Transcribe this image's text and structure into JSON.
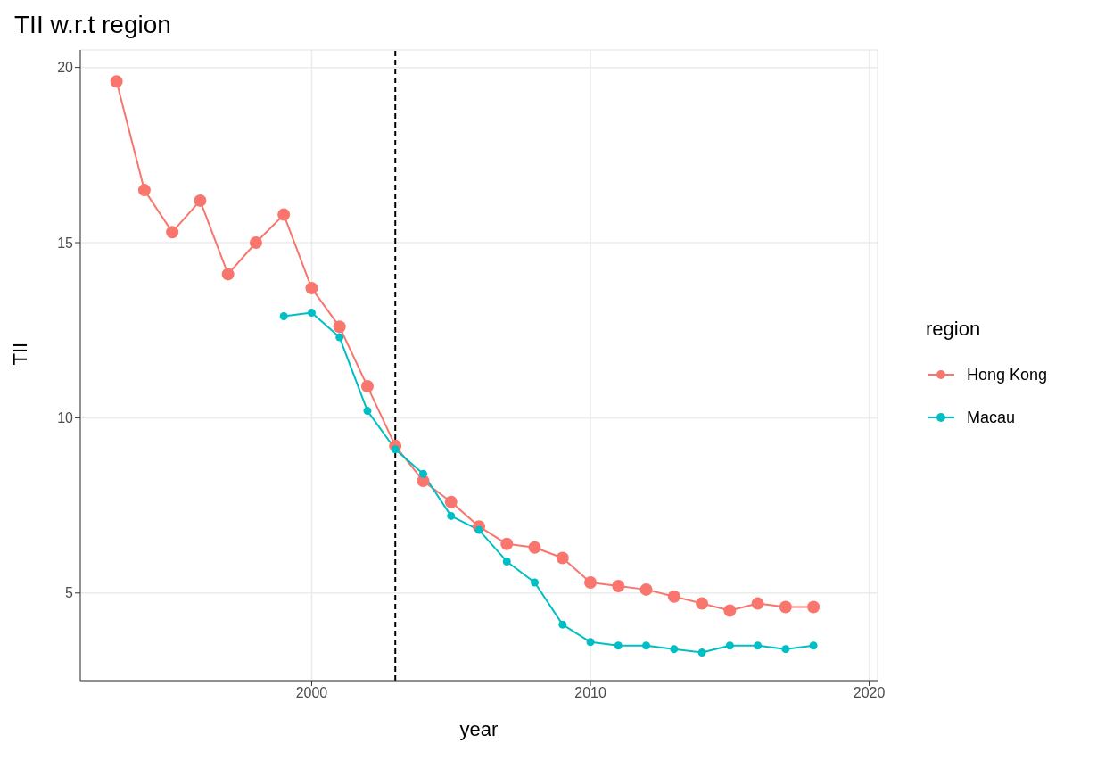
{
  "chart_data": {
    "type": "line",
    "title": "TII w.r.t region",
    "xlabel": "year",
    "ylabel": "TII",
    "legend_title": "region",
    "series": [
      {
        "name": "Hong Kong",
        "color": "#f8766d",
        "x": [
          1993,
          1994,
          1995,
          1996,
          1997,
          1998,
          1999,
          2000,
          2001,
          2002,
          2003,
          2004,
          2005,
          2006,
          2007,
          2008,
          2009,
          2010,
          2011,
          2012,
          2013,
          2014,
          2015,
          2016,
          2017,
          2018
        ],
        "values": [
          19.6,
          16.5,
          15.3,
          16.2,
          14.1,
          15.0,
          15.8,
          13.7,
          12.6,
          10.9,
          9.2,
          8.2,
          7.6,
          6.9,
          6.4,
          6.3,
          6.0,
          5.3,
          5.2,
          5.1,
          4.9,
          4.7,
          4.5,
          4.7,
          4.6,
          4.6
        ]
      },
      {
        "name": "Macau",
        "color": "#00bfc4",
        "x": [
          1999,
          2000,
          2001,
          2002,
          2003,
          2004,
          2005,
          2006,
          2007,
          2008,
          2009,
          2010,
          2011,
          2012,
          2013,
          2014,
          2015,
          2016,
          2017,
          2018
        ],
        "values": [
          12.9,
          13.0,
          12.3,
          10.2,
          9.1,
          8.4,
          7.2,
          6.8,
          5.9,
          5.3,
          4.1,
          3.6,
          3.5,
          3.5,
          3.4,
          3.3,
          3.5,
          3.5,
          3.4,
          3.5
        ]
      }
    ],
    "xlim": [
      1991.7,
      2020.3
    ],
    "xticks": [
      2000,
      2010,
      2020
    ],
    "ylim": [
      2.5,
      20.5
    ],
    "yticks": [
      5,
      10,
      15,
      20
    ],
    "ref_lines": [
      {
        "axis": "x",
        "value": 2003,
        "color": "#000000",
        "line_style": "dashed"
      }
    ],
    "grid": true,
    "legend": "right",
    "marker": "circle",
    "line_style": "solid"
  }
}
